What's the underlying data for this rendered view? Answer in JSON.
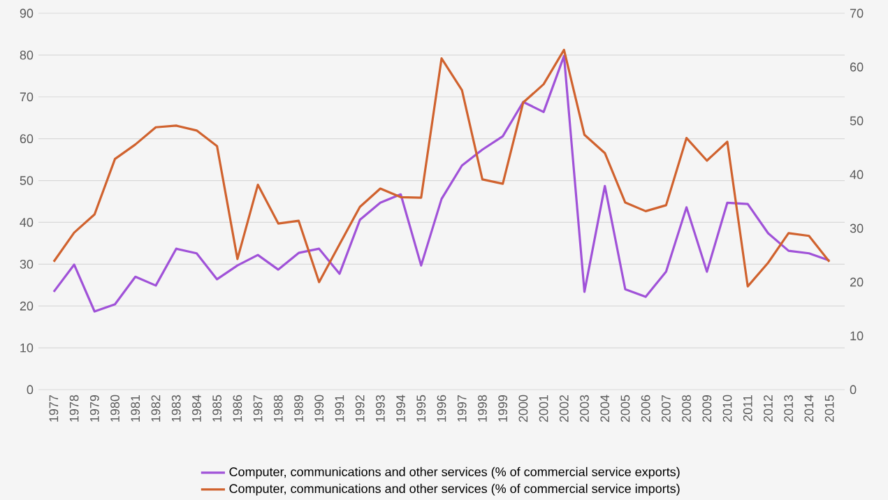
{
  "chart_data": {
    "type": "line",
    "categories": [
      "1977",
      "1978",
      "1979",
      "1980",
      "1981",
      "1982",
      "1983",
      "1984",
      "1985",
      "1986",
      "1987",
      "1988",
      "1989",
      "1990",
      "1991",
      "1992",
      "1993",
      "1994",
      "1995",
      "1996",
      "1997",
      "1998",
      "1999",
      "2000",
      "2001",
      "2002",
      "2003",
      "2004",
      "2005",
      "2006",
      "2007",
      "2008",
      "2009",
      "2010",
      "2011",
      "2012",
      "2013",
      "2014",
      "2015"
    ],
    "series": [
      {
        "name": "Computer, communications and other services (% of commercial service exports)",
        "color": "#a052d8",
        "values": [
          23.4,
          29.9,
          18.7,
          20.4,
          27.0,
          24.9,
          33.7,
          32.6,
          26.4,
          29.7,
          32.2,
          28.7,
          32.7,
          33.7,
          27.7,
          40.6,
          44.7,
          46.7,
          29.7,
          45.6,
          53.6,
          57.4,
          60.6,
          68.8,
          66.4,
          79.8,
          23.4,
          48.7,
          24.0,
          22.2,
          28.2,
          43.6,
          28.2,
          44.7,
          44.4,
          37.4,
          33.2,
          32.6,
          30.9
        ]
      },
      {
        "name": "Computer, communications and other services (% of commercial service imports)",
        "color": "#d0622e",
        "axis": "y2",
        "values": [
          23.8,
          29.2,
          32.6,
          42.9,
          45.6,
          48.8,
          49.1,
          48.2,
          45.3,
          24.3,
          38.1,
          30.9,
          31.4,
          20.0,
          27.0,
          34.0,
          37.4,
          35.8,
          35.7,
          61.6,
          55.7,
          39.1,
          38.3,
          53.4,
          56.8,
          63.2,
          47.4,
          44.0,
          34.8,
          33.2,
          34.3,
          46.8,
          42.6,
          46.1,
          19.2,
          23.6,
          29.1,
          28.6,
          23.8
        ]
      }
    ],
    "ylim": [
      0,
      90
    ],
    "yticks": [
      0,
      10,
      20,
      30,
      40,
      50,
      60,
      70,
      80,
      90
    ],
    "y2lim": [
      0,
      70
    ],
    "y2ticks": [
      0,
      10,
      20,
      30,
      40,
      50,
      60,
      70
    ],
    "grid": "y",
    "legend": "bottom",
    "marker": "none",
    "line_style": "solid"
  }
}
